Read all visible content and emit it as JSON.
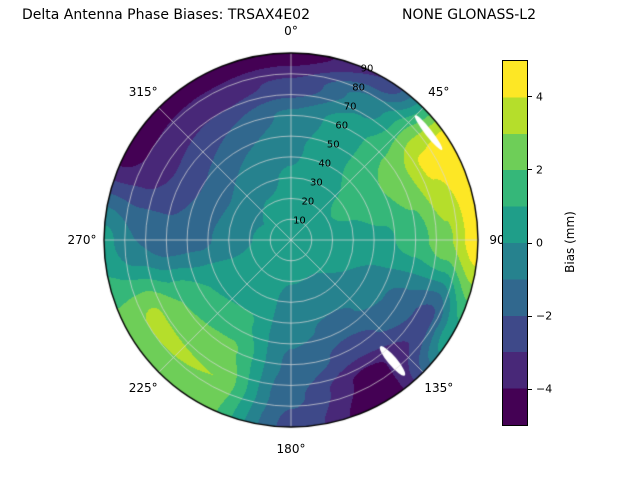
{
  "title": {
    "left": "Delta Antenna Phase Biases: TRSAX4E02",
    "right": "NONE GLONASS-L2"
  },
  "chart_data": {
    "type": "polar_contour",
    "title": "Delta Antenna Phase Biases: TRSAX4E02    NONE GLONASS-L2",
    "units": "mm",
    "value_range": [
      -5,
      5
    ],
    "levels": [
      -5,
      -4,
      -3,
      -2,
      -1,
      0,
      1,
      2,
      3,
      4,
      5
    ],
    "colors": [
      "#440154",
      "#482878",
      "#3e4989",
      "#31688e",
      "#26828e",
      "#1f9e89",
      "#35b779",
      "#6ece58",
      "#b5de2b",
      "#fde725"
    ],
    "grid": {
      "circle_step": 10,
      "spoke_step": 45,
      "color": "#d9d9d9",
      "outline_color": "#000000"
    },
    "angular_ticks": [
      {
        "angle": 0,
        "label": "0°"
      },
      {
        "angle": 45,
        "label": "45°"
      },
      {
        "angle": 90,
        "label": "90°"
      },
      {
        "angle": 135,
        "label": "135°"
      },
      {
        "angle": 180,
        "label": "180°"
      },
      {
        "angle": 225,
        "label": "225°"
      },
      {
        "angle": 270,
        "label": "270°"
      },
      {
        "angle": 315,
        "label": "315°"
      }
    ],
    "radial_ticks": [
      {
        "r": 10,
        "label": "10"
      },
      {
        "r": 20,
        "label": "20"
      },
      {
        "r": 30,
        "label": "30"
      },
      {
        "r": 40,
        "label": "40"
      },
      {
        "r": 50,
        "label": "50"
      },
      {
        "r": 60,
        "label": "60"
      },
      {
        "r": 70,
        "label": "70"
      },
      {
        "r": 80,
        "label": "80"
      },
      {
        "r": 90,
        "label": "90"
      }
    ],
    "radial_label_angle": 24,
    "azimuths": [
      0,
      30,
      60,
      90,
      120,
      150,
      180,
      210,
      240,
      270,
      300,
      330
    ],
    "radii": [
      0,
      15,
      30,
      45,
      60,
      75,
      90
    ],
    "values": [
      [
        0.5,
        0.3,
        0.1,
        -0.2,
        -0.8,
        -2.8,
        -4.7
      ],
      [
        0.5,
        0.5,
        0.7,
        0.9,
        0.8,
        -0.5,
        -3.0
      ],
      [
        0.5,
        0.8,
        1.2,
        1.8,
        2.6,
        4.2,
        4.8
      ],
      [
        0.5,
        0.6,
        0.6,
        0.8,
        1.5,
        2.8,
        4.7
      ],
      [
        0.5,
        0.3,
        0.0,
        -0.6,
        -1.4,
        -2.4,
        0.8
      ],
      [
        0.5,
        0.1,
        -0.4,
        -1.2,
        -2.4,
        -4.3,
        -4.8
      ],
      [
        0.5,
        0.2,
        -0.3,
        -0.8,
        -1.2,
        -1.8,
        -2.3
      ],
      [
        0.5,
        0.4,
        0.5,
        1.2,
        2.2,
        3.0,
        2.6
      ],
      [
        0.5,
        0.4,
        0.4,
        1.0,
        2.0,
        3.2,
        2.4
      ],
      [
        0.5,
        0.1,
        -0.6,
        -1.3,
        -1.6,
        -1.0,
        0.3
      ],
      [
        0.5,
        0.0,
        -0.8,
        -1.8,
        -2.8,
        -3.8,
        -4.6
      ],
      [
        0.5,
        0.2,
        -0.2,
        -1.0,
        -2.0,
        -3.4,
        -4.7
      ]
    ],
    "mask_patches": [
      {
        "az": 140,
        "r": 76,
        "length": 38,
        "width": 9,
        "orient": "radial"
      },
      {
        "az": 52,
        "r": 84,
        "length": 44,
        "width": 7,
        "orient": "tangential"
      }
    ],
    "colorbar": {
      "label": "Bias (mm)",
      "min": -5,
      "max": 5,
      "ticks": [
        {
          "v": -4,
          "label": "−4"
        },
        {
          "v": -2,
          "label": "−2"
        },
        {
          "v": 0,
          "label": "0"
        },
        {
          "v": 2,
          "label": "2"
        },
        {
          "v": 4,
          "label": "4"
        }
      ]
    }
  }
}
